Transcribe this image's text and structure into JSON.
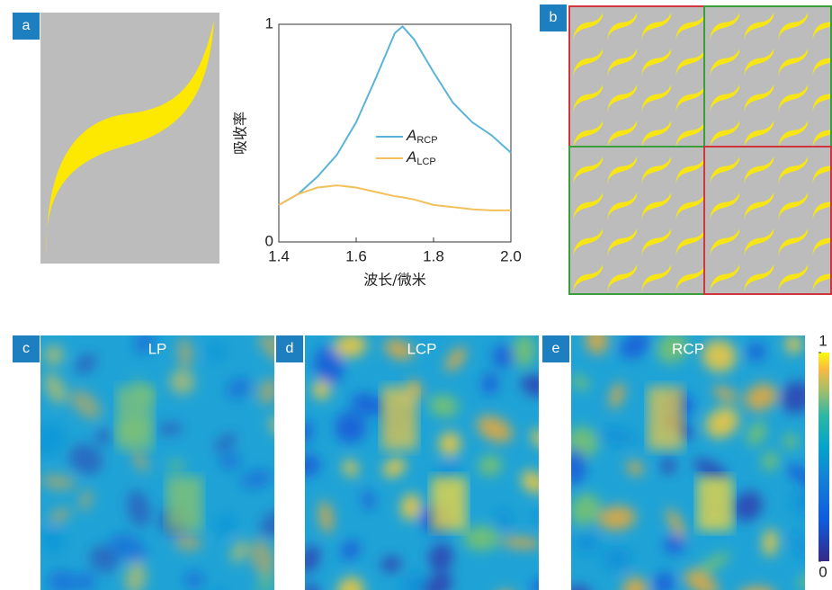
{
  "panel_labels": [
    "a",
    "b",
    "c",
    "d",
    "e"
  ],
  "maps": {
    "titles": [
      "LP",
      "LCP",
      "RCP"
    ]
  },
  "colorbar": {
    "lim": [
      0,
      1
    ],
    "ticks": [
      0,
      1
    ]
  },
  "chart_data": {
    "type": "line",
    "xlabel": "波长/微米",
    "ylabel": "吸收率",
    "x": [
      1.4,
      1.45,
      1.5,
      1.55,
      1.6,
      1.65,
      1.7,
      1.72,
      1.75,
      1.8,
      1.85,
      1.9,
      1.95,
      2.0
    ],
    "series": [
      {
        "name": "ARCP",
        "color": "#5ab4d8",
        "values": [
          0.17,
          0.22,
          0.3,
          0.4,
          0.55,
          0.75,
          0.96,
          0.99,
          0.93,
          0.78,
          0.64,
          0.55,
          0.49,
          0.41
        ]
      },
      {
        "name": "ALCP",
        "color": "#f3c05a",
        "values": [
          0.17,
          0.22,
          0.25,
          0.26,
          0.25,
          0.23,
          0.21,
          0.205,
          0.195,
          0.17,
          0.16,
          0.15,
          0.145,
          0.145
        ]
      }
    ],
    "xlim": [
      1.4,
      2.0
    ],
    "xticks": [
      1.4,
      1.6,
      1.8,
      {
        "value": 2.0,
        "label": "2.0"
      }
    ],
    "ylim": [
      0,
      1
    ],
    "yticks": [
      0,
      1
    ]
  }
}
